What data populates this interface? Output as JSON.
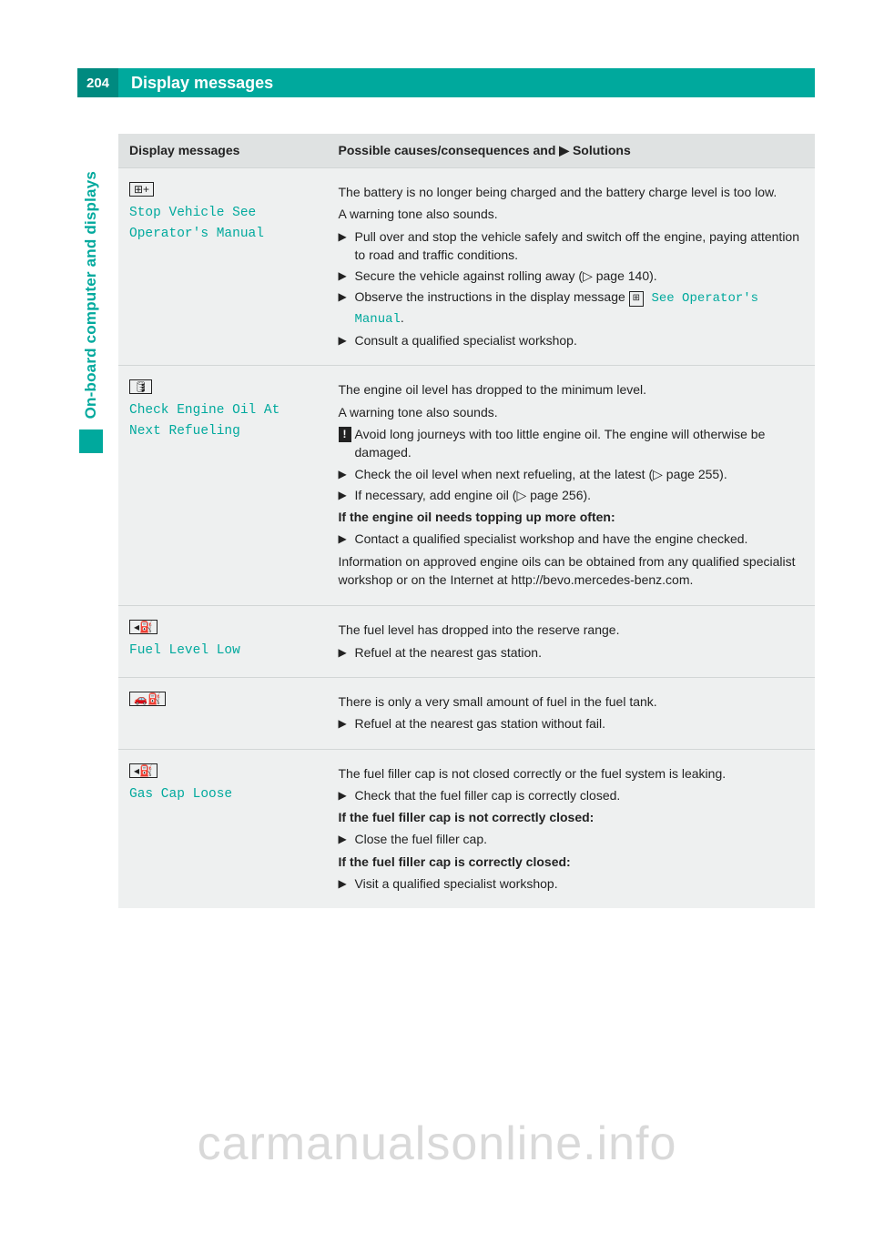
{
  "header": {
    "page_number": "204",
    "title": "Display messages"
  },
  "sidebar": {
    "label": "On-board computer and displays"
  },
  "table": {
    "columns": {
      "left": "Display messages",
      "right_prefix": "Possible causes/consequences and ",
      "right_suffix": " Solutions"
    },
    "rows": [
      {
        "display": {
          "icon_glyph": "⊞+",
          "label_lines": [
            "Stop Vehicle See",
            "Operator's Manual"
          ]
        },
        "body": {
          "intro1": "The battery is no longer being charged and the battery charge level is too low.",
          "intro2": "A warning tone also sounds.",
          "bullets": [
            "Pull over and stop the vehicle safely and switch off the engine, pay­ing attention to road and traffic conditions.",
            "Secure the vehicle against rolling away (▷ page 140)."
          ],
          "bullet_with_inline": {
            "pre": "Observe the instructions in the display message ",
            "icon": "⊞",
            "mono": " See Oper­ator's Manual",
            "post": "."
          },
          "bullets_tail": [
            "Consult a qualified specialist workshop."
          ]
        }
      },
      {
        "display": {
          "icon_glyph": "🛢",
          "label_lines": [
            "Check Engine Oil At",
            "Next Refueling"
          ]
        },
        "body": {
          "intro1": "The engine oil level has dropped to the minimum level.",
          "intro2": "A warning tone also sounds.",
          "warn": "Avoid long journeys with too little engine oil. The engine will oth­erwise be damaged.",
          "bullets": [
            "Check the oil level when next refueling, at the latest (▷ page 255).",
            "If necessary, add engine oil (▷ page 256)."
          ],
          "bold1": "If the engine oil needs topping up more often:",
          "bullets2": [
            "Contact a qualified specialist workshop and have the engine checked."
          ],
          "outro": "Information on approved engine oils can be obtained from any quali­fied specialist workshop or on the Internet at http://bevo.mercedes-benz.com."
        }
      },
      {
        "display": {
          "icon_glyph": "◂⛽",
          "label_lines": [
            "Fuel Level Low"
          ]
        },
        "body": {
          "intro1": "The fuel level has dropped into the reserve range.",
          "bullets": [
            "Refuel at the nearest gas station."
          ]
        }
      },
      {
        "display": {
          "icon_glyph": "🚗⛽",
          "label_lines": []
        },
        "body": {
          "intro1": "There is only a very small amount of fuel in the fuel tank.",
          "bullets": [
            "Refuel at the nearest gas station without fail."
          ]
        }
      },
      {
        "display": {
          "icon_glyph": "◂⛽",
          "label_lines": [
            "Gas Cap Loose"
          ]
        },
        "body": {
          "intro1": "The fuel filler cap is not closed correctly or the fuel system is leaking.",
          "bullets": [
            "Check that the fuel filler cap is correctly closed."
          ],
          "bold1": "If the fuel filler cap is not correctly closed:",
          "bullets2": [
            "Close the fuel filler cap."
          ],
          "bold2": "If the fuel filler cap is correctly closed:",
          "bullets3": [
            "Visit a qualified specialist workshop."
          ]
        }
      }
    ]
  },
  "watermark": "carmanualsonline.info",
  "glyphs": {
    "bullet_arrow": "▶",
    "header_arrow": "▶",
    "warn": "!"
  },
  "colors": {
    "brand": "#00a99d",
    "brand_dark": "#008a80",
    "table_header_bg": "#dfe2e2",
    "table_body_bg": "#eef0f0",
    "text": "#222222"
  }
}
